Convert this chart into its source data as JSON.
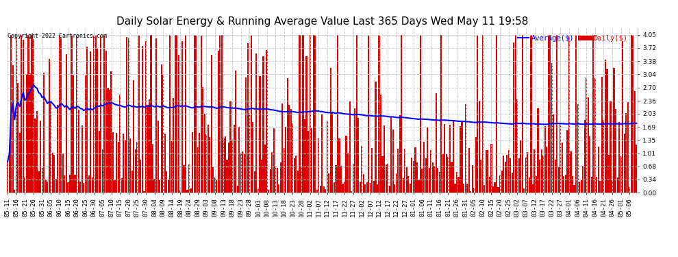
{
  "title": "Daily Solar Energy & Running Average Value Last 365 Days Wed May 11 19:58",
  "copyright": "Copyright 2022 Cartronics.com",
  "legend_avg": "Average($)",
  "legend_daily": "Daily($)",
  "avg_color": "#0000ff",
  "daily_color": "#dd0000",
  "bar_width": 0.85,
  "ylim": [
    0.0,
    4.22
  ],
  "yticks": [
    0.0,
    0.34,
    0.68,
    1.01,
    1.35,
    1.69,
    2.03,
    2.36,
    2.7,
    3.04,
    3.38,
    3.72,
    4.05
  ],
  "background_color": "white",
  "grid_color": "#cccccc",
  "title_fontsize": 11,
  "tick_fontsize": 6.5,
  "avg_linewidth": 1.5,
  "tick_step": 5
}
